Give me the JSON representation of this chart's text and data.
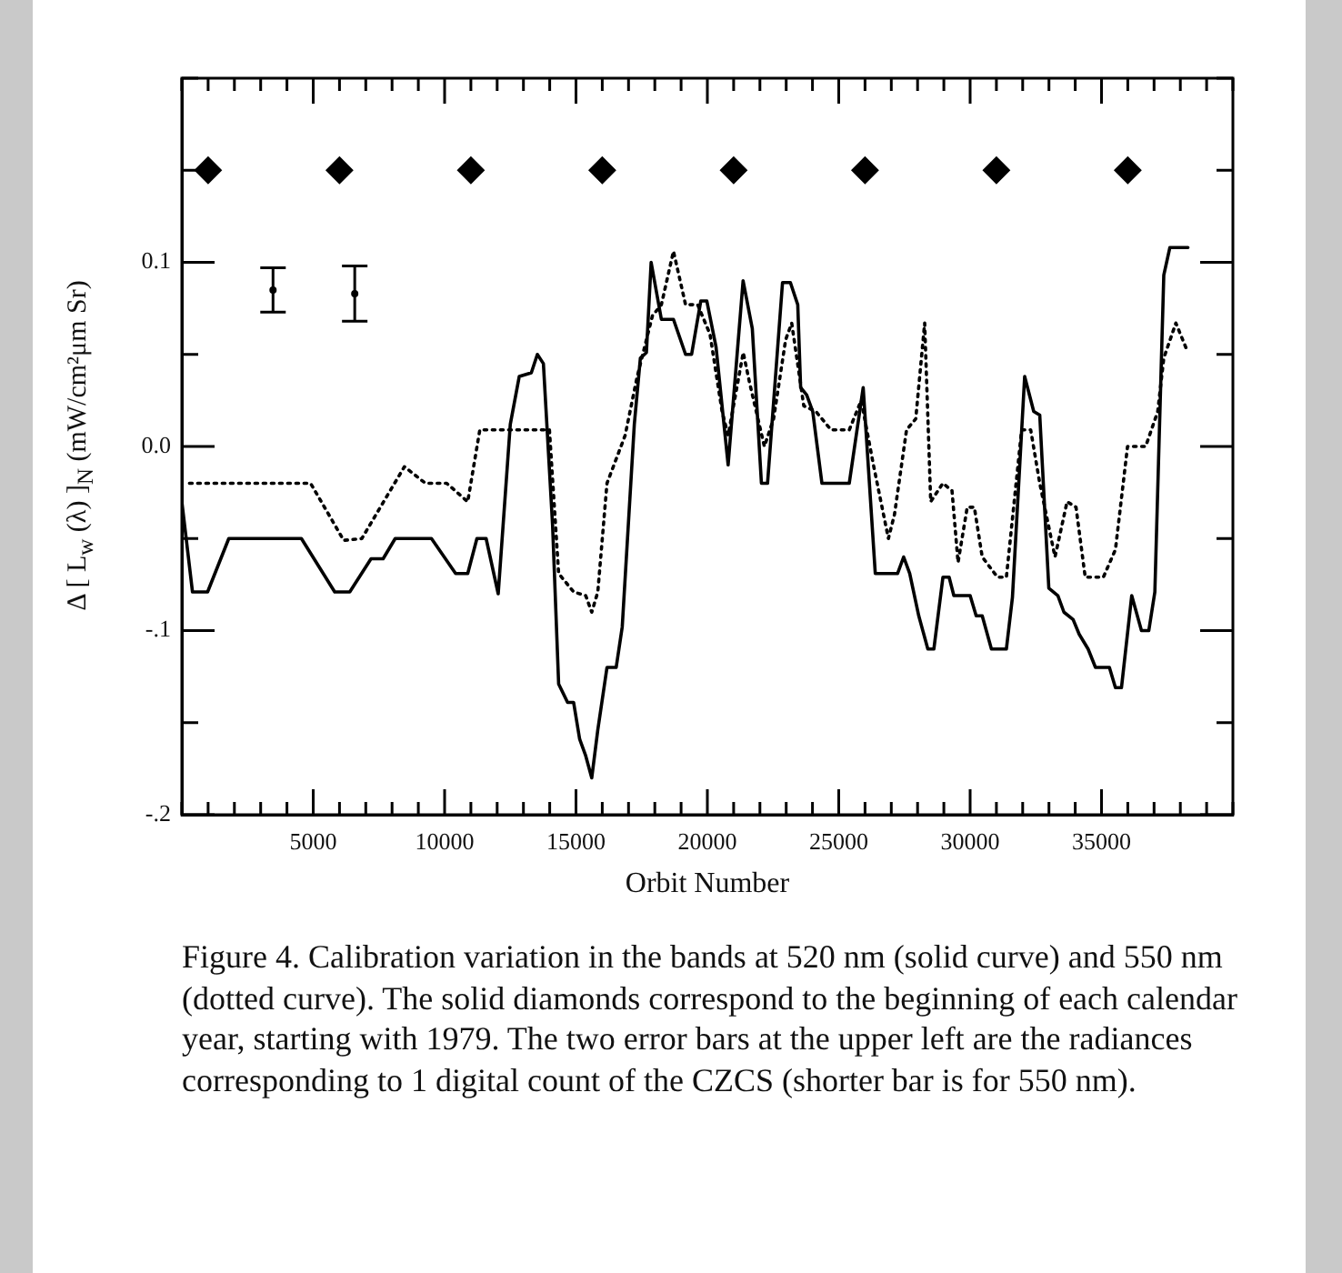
{
  "chart_data": {
    "type": "line",
    "xlabel": "Orbit Number",
    "ylabel": "Δ [ L$_{w}$ (λ) ]$_{N}$   (mW/cm²μm Sr)",
    "xlim": [
      0,
      40000
    ],
    "ylim": [
      -0.2,
      0.2
    ],
    "xticks": [
      {
        "value": 0,
        "label": null
      },
      {
        "value": 1000,
        "label": null
      },
      {
        "value": 2000,
        "label": null
      },
      {
        "value": 3000,
        "label": null
      },
      {
        "value": 4000,
        "label": null
      },
      5000,
      {
        "value": 6000,
        "label": null
      },
      {
        "value": 7000,
        "label": null
      },
      {
        "value": 8000,
        "label": null
      },
      {
        "value": 9000,
        "label": null
      },
      10000,
      {
        "value": 11000,
        "label": null
      },
      {
        "value": 12000,
        "label": null
      },
      {
        "value": 13000,
        "label": null
      },
      {
        "value": 14000,
        "label": null
      },
      15000,
      {
        "value": 16000,
        "label": null
      },
      {
        "value": 17000,
        "label": null
      },
      {
        "value": 18000,
        "label": null
      },
      {
        "value": 19000,
        "label": null
      },
      20000,
      {
        "value": 21000,
        "label": null
      },
      {
        "value": 22000,
        "label": null
      },
      {
        "value": 23000,
        "label": null
      },
      {
        "value": 24000,
        "label": null
      },
      25000,
      {
        "value": 26000,
        "label": null
      },
      {
        "value": 27000,
        "label": null
      },
      {
        "value": 28000,
        "label": null
      },
      {
        "value": 29000,
        "label": null
      },
      30000,
      {
        "value": 31000,
        "label": null
      },
      {
        "value": 32000,
        "label": null
      },
      {
        "value": 33000,
        "label": null
      },
      {
        "value": 34000,
        "label": null
      },
      35000,
      {
        "value": 36000,
        "label": null
      },
      {
        "value": 37000,
        "label": null
      },
      {
        "value": 38000,
        "label": null
      },
      {
        "value": 39000,
        "label": null
      },
      {
        "value": 40000,
        "label": null
      }
    ],
    "yticks": [
      {
        "value": -0.2,
        "label": "-.2"
      },
      {
        "value": -0.15,
        "label": null
      },
      {
        "value": -0.1,
        "label": "-.1"
      },
      {
        "value": -0.05,
        "label": null
      },
      {
        "value": 0,
        "label": "0.0"
      },
      {
        "value": 0.05,
        "label": null
      },
      0.1,
      {
        "value": 0.15,
        "label": null
      },
      {
        "value": 0.2,
        "label": null
      }
    ],
    "grid": false,
    "legend": false,
    "series": [
      {
        "type": "line",
        "color": "#000000",
        "line_style": "solid",
        "marker": "none",
        "x": [
          0,
          405,
          980,
          1787,
          4550,
          5818,
          6390,
          7200,
          7660,
          8120,
          9500,
          10420,
          10880,
          11230,
          11580,
          12040,
          12500,
          12840,
          13300,
          13530,
          13760,
          14110,
          14340,
          14680,
          14910,
          15140,
          15370,
          15600,
          15830,
          16180,
          16530,
          16760,
          17220,
          17450,
          17680,
          17860,
          18250,
          18710,
          19170,
          19400,
          19750,
          19980,
          20330,
          20790,
          21360,
          21710,
          22057,
          22290,
          22860,
          23160,
          23440,
          23550,
          23780,
          24010,
          24360,
          25400,
          25930,
          26390,
          27240,
          27470,
          27700,
          28045,
          28390,
          28620,
          28965,
          29200,
          29380,
          30000,
          30230,
          30460,
          30810,
          31380,
          31610,
          32075,
          32420,
          32650,
          32995,
          33340,
          33570,
          33920,
          34150,
          34490,
          34770,
          35300,
          35530,
          35760,
          36150,
          36520,
          36800,
          37030,
          37370,
          37600,
          38290
        ],
        "values": [
          -0.03,
          -0.079,
          -0.079,
          -0.05,
          -0.05,
          -0.079,
          -0.079,
          -0.061,
          -0.061,
          -0.05,
          -0.05,
          -0.069,
          -0.069,
          -0.05,
          -0.05,
          -0.08,
          0.012,
          0.038,
          0.04,
          0.05,
          0.045,
          -0.043,
          -0.129,
          -0.139,
          -0.139,
          -0.159,
          -0.168,
          -0.18,
          -0.154,
          -0.12,
          -0.12,
          -0.098,
          0.012,
          0.048,
          0.051,
          0.1,
          0.069,
          0.069,
          0.05,
          0.05,
          0.079,
          0.079,
          0.054,
          -0.01,
          0.09,
          0.064,
          -0.02,
          -0.02,
          0.089,
          0.089,
          0.077,
          0.032,
          0.028,
          0.019,
          -0.02,
          -0.02,
          0.032,
          -0.069,
          -0.069,
          -0.06,
          -0.069,
          -0.092,
          -0.11,
          -0.11,
          -0.071,
          -0.071,
          -0.081,
          -0.081,
          -0.092,
          -0.092,
          -0.11,
          -0.11,
          -0.082,
          0.038,
          0.019,
          0.017,
          -0.077,
          -0.081,
          -0.09,
          -0.094,
          -0.102,
          -0.11,
          -0.12,
          -0.12,
          -0.131,
          -0.131,
          -0.081,
          -0.1,
          -0.1,
          -0.079,
          0.093,
          0.108,
          0.108
        ]
      },
      {
        "type": "line",
        "color": "#000000",
        "line_style": "dotted",
        "marker": "none",
        "x": [
          290,
          4900,
          6160,
          6850,
          8470,
          9270,
          10080,
          10880,
          11340,
          11920,
          13990,
          14340,
          14910,
          15370,
          15600,
          15830,
          16180,
          16870,
          17330,
          17910,
          18250,
          18710,
          19170,
          19630,
          20100,
          20560,
          20790,
          21365,
          21600,
          22170,
          22520,
          22980,
          23210,
          23670,
          24130,
          24705,
          25400,
          25855,
          26320,
          26890,
          27120,
          27580,
          27930,
          28270,
          28500,
          28965,
          29310,
          29540,
          29890,
          30160,
          30460,
          31040,
          31380,
          31960,
          32305,
          32650,
          33230,
          33690,
          34030,
          34380,
          35070,
          35530,
          35990,
          36680,
          37140,
          37370,
          37830,
          38290
        ],
        "values": [
          -0.02,
          -0.02,
          -0.051,
          -0.05,
          -0.011,
          -0.02,
          -0.02,
          -0.03,
          0.009,
          0.009,
          0.009,
          -0.069,
          -0.079,
          -0.081,
          -0.09,
          -0.079,
          -0.02,
          0.006,
          0.038,
          0.071,
          0.077,
          0.106,
          0.077,
          0.077,
          0.061,
          0.019,
          0.006,
          0.051,
          0.035,
          0.0,
          0.015,
          0.058,
          0.067,
          0.022,
          0.019,
          0.009,
          0.009,
          0.025,
          -0.01,
          -0.05,
          -0.037,
          0.009,
          0.015,
          0.067,
          -0.03,
          -0.02,
          -0.024,
          -0.063,
          -0.033,
          -0.033,
          -0.06,
          -0.071,
          -0.071,
          0.009,
          0.009,
          -0.02,
          -0.06,
          -0.03,
          -0.033,
          -0.071,
          -0.071,
          -0.056,
          0.0,
          0.0,
          0.019,
          0.048,
          0.067,
          0.051
        ]
      },
      {
        "type": "scatter",
        "color": "#000000",
        "marker": "diamond",
        "x": [
          1000,
          6000,
          11000,
          16000,
          21000,
          26000,
          31000,
          36000
        ],
        "values": [
          0.15,
          0.15,
          0.15,
          0.15,
          0.15,
          0.15,
          0.15,
          0.15
        ]
      },
      {
        "type": "scatter",
        "color": "#000000",
        "x": [
          3470,
          6580
        ],
        "values": [
          0.085,
          0.083
        ],
        "errors": [
          0.012,
          0.015
        ]
      }
    ],
    "annotations": [
      "Figure 4.  Calibration variation in the bands at 520 nm (solid curve) and 550 nm (dotted curve). The solid diamonds correspond to the beginning of each calendar year, starting with 1979. The two error bars at the upper left are the radiances corresponding to 1 digital count of the CZCS (shorter bar is for 550 nm)."
    ]
  }
}
